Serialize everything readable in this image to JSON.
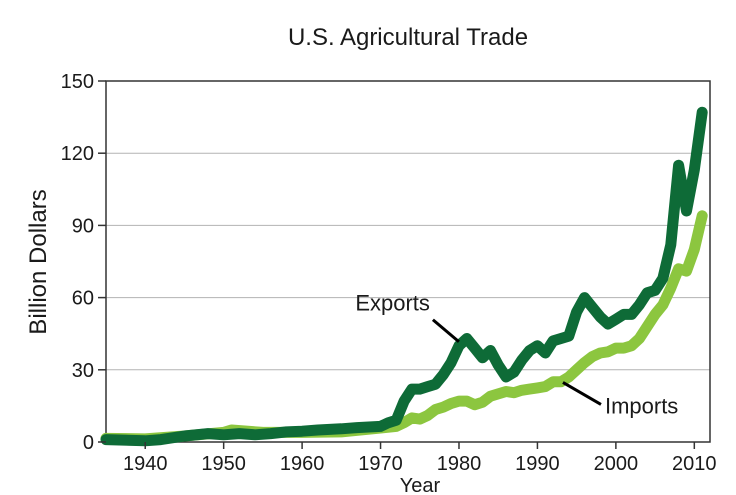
{
  "chart_data": {
    "type": "line",
    "title": "U.S. Agricultural Trade",
    "xlabel": "Year",
    "ylabel": "Billion Dollars",
    "xlim": [
      1935,
      2012
    ],
    "ylim": [
      0,
      150
    ],
    "x_ticks": [
      1940,
      1950,
      1960,
      1970,
      1980,
      1990,
      2000,
      2010
    ],
    "y_ticks": [
      0,
      30,
      60,
      90,
      120,
      150
    ],
    "grid": "horizontal",
    "series": [
      {
        "name": "Imports",
        "color": "#8cc63f",
        "x": [
          1935,
          1940,
          1945,
          1950,
          1951,
          1955,
          1960,
          1965,
          1970,
          1972,
          1973,
          1974,
          1975,
          1976,
          1977,
          1978,
          1979,
          1980,
          1981,
          1982,
          1983,
          1984,
          1985,
          1986,
          1987,
          1988,
          1989,
          1990,
          1991,
          1992,
          1993,
          1994,
          1995,
          1996,
          1997,
          1998,
          1999,
          2000,
          2001,
          2002,
          2003,
          2004,
          2005,
          2006,
          2007,
          2008,
          2009,
          2010,
          2011
        ],
        "values": [
          1.5,
          1.3,
          2.5,
          4,
          5,
          4,
          4,
          4.2,
          5.8,
          6.5,
          8,
          10,
          9.5,
          11,
          13.5,
          14.5,
          16,
          17,
          17,
          15.5,
          16.5,
          19,
          20,
          21,
          20.5,
          21.5,
          22,
          22.5,
          23,
          25,
          25,
          27,
          30,
          33,
          35.5,
          37,
          37.5,
          39,
          39,
          40,
          43,
          48,
          53,
          57,
          64,
          72,
          71,
          80,
          94
        ]
      },
      {
        "name": "Exports",
        "color": "#0e6b37",
        "x": [
          1935,
          1940,
          1942,
          1945,
          1948,
          1950,
          1952,
          1954,
          1956,
          1958,
          1960,
          1962,
          1965,
          1967,
          1970,
          1971,
          1972,
          1973,
          1974,
          1975,
          1976,
          1977,
          1978,
          1979,
          1980,
          1981,
          1982,
          1983,
          1984,
          1985,
          1986,
          1987,
          1988,
          1989,
          1990,
          1991,
          1992,
          1993,
          1994,
          1995,
          1996,
          1997,
          1998,
          1999,
          2000,
          2001,
          2002,
          2003,
          2004,
          2005,
          2006,
          2007,
          2008,
          2009,
          2010,
          2011
        ],
        "values": [
          1,
          0.5,
          1,
          2.5,
          3.5,
          3,
          3.5,
          3,
          3.5,
          4.2,
          4.5,
          5,
          5.5,
          6,
          6.5,
          8,
          9,
          17,
          22,
          22,
          23,
          24,
          28,
          33,
          40,
          43,
          39,
          35,
          38,
          32,
          27,
          29,
          34,
          38,
          40,
          37,
          42,
          43,
          44,
          54,
          60,
          56,
          52,
          49,
          51,
          53,
          53,
          57,
          62,
          63,
          68,
          82,
          115,
          96,
          113,
          137
        ]
      }
    ],
    "annotations": [
      {
        "text": "Exports",
        "series": "Exports",
        "at_x": 1980.5,
        "at_y": 40
      },
      {
        "text": "Imports",
        "series": "Imports",
        "at_x": 1993,
        "at_y": 26
      }
    ]
  }
}
